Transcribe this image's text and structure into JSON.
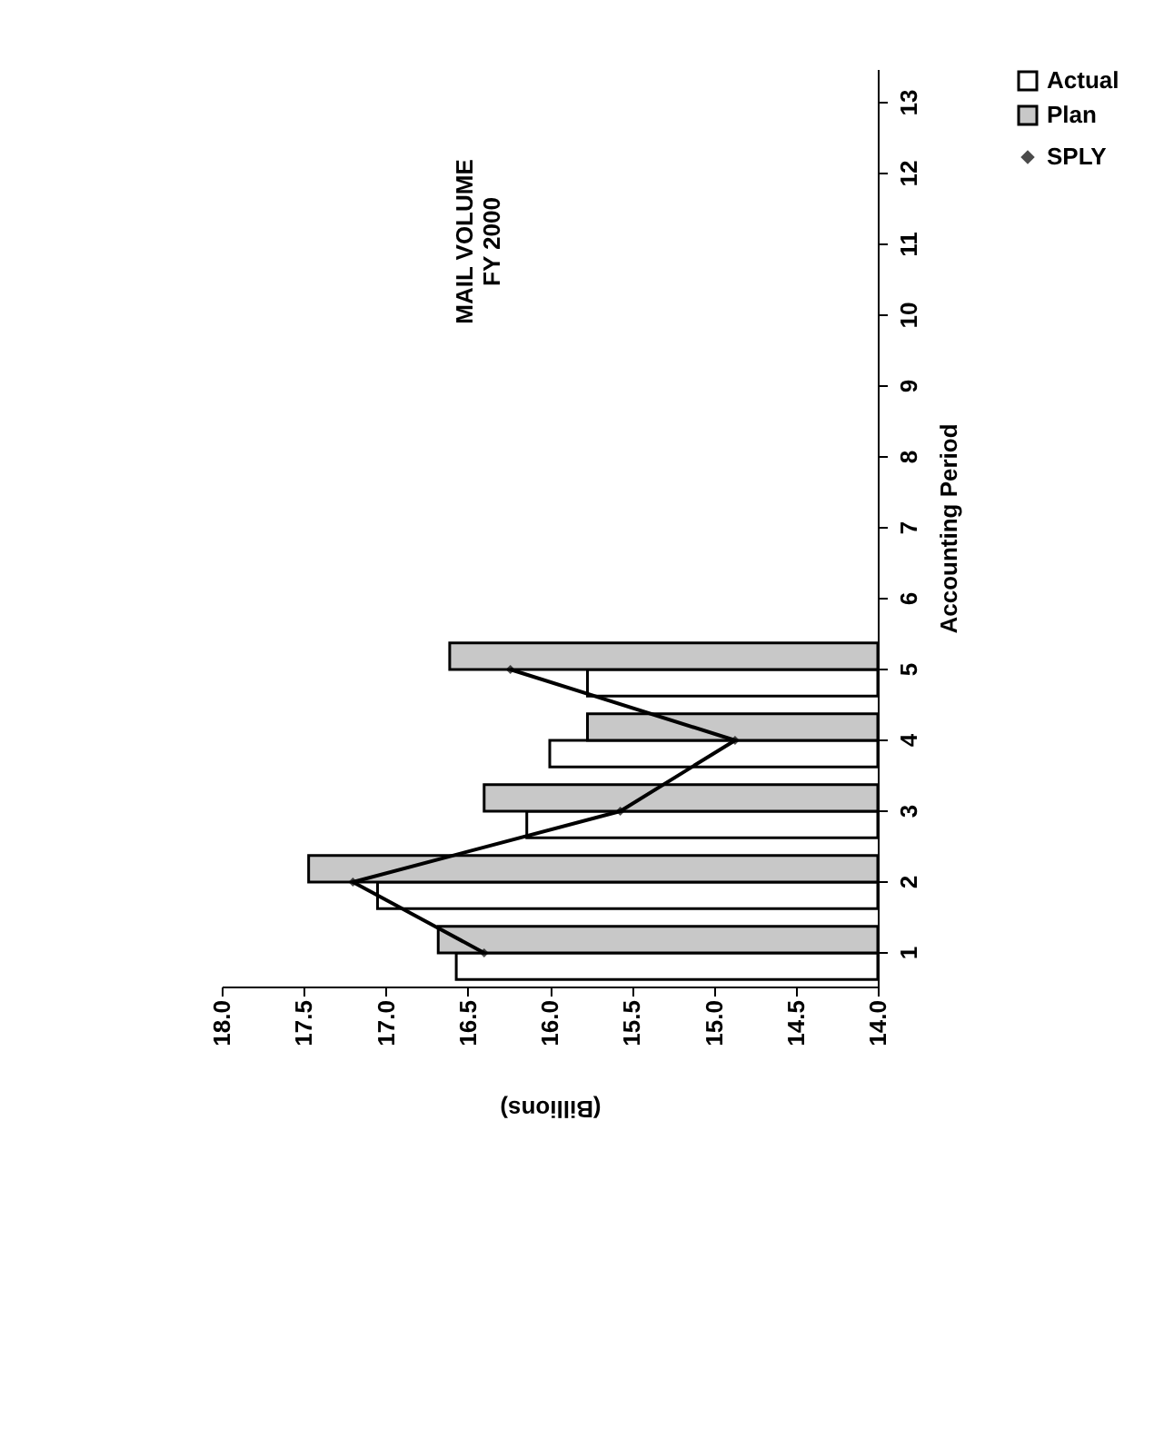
{
  "chart_data": {
    "type": "bar",
    "title": "MAIL VOLUME\nFY 2000",
    "orientation": "horizontal",
    "xlabel": "(Billions)",
    "ylabel": "Accounting Period",
    "categories": [
      "13",
      "12",
      "11",
      "10",
      "9",
      "8",
      "7",
      "6",
      "5",
      "4",
      "3",
      "2",
      "1"
    ],
    "series": [
      {
        "name": "Actual",
        "color": "#ffffff",
        "values": [
          null,
          null,
          null,
          null,
          null,
          null,
          null,
          null,
          15.77,
          16.0,
          16.14,
          17.05,
          16.57
        ]
      },
      {
        "name": "Plan",
        "color": "#c8c8c8",
        "values": [
          null,
          null,
          null,
          null,
          null,
          null,
          null,
          null,
          16.61,
          15.77,
          16.4,
          17.47,
          16.68
        ]
      },
      {
        "name": "SPLY",
        "type": "line",
        "color": "#000000",
        "marker": "diamond",
        "values": [
          null,
          null,
          null,
          null,
          null,
          null,
          null,
          null,
          16.24,
          14.87,
          15.57,
          17.2,
          16.4
        ]
      }
    ],
    "xlim": [
      18.0,
      14.0
    ],
    "xticks": [
      {
        "value": 18,
        "label": "18.0"
      },
      17.5,
      {
        "value": 17,
        "label": "17.0"
      },
      16.5,
      {
        "value": 16,
        "label": "16.0"
      },
      15.5,
      {
        "value": 15,
        "label": "15.0"
      },
      14.5,
      {
        "value": 14,
        "label": "14.0"
      }
    ],
    "grid": false,
    "legend": "right"
  }
}
